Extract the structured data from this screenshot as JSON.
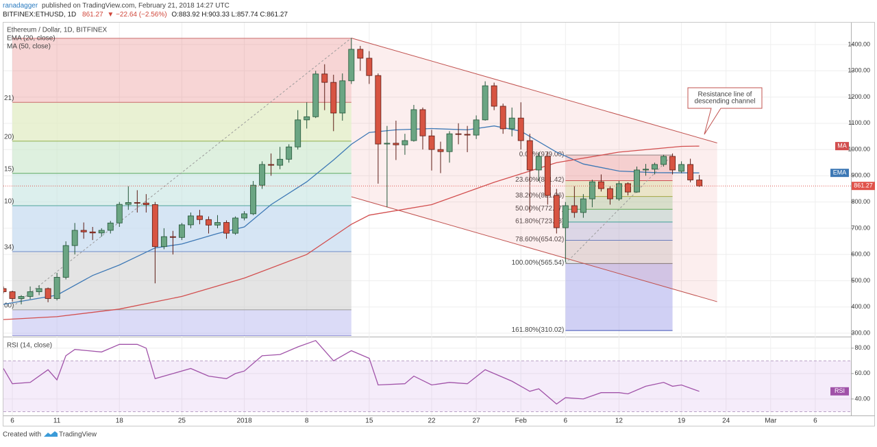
{
  "header": {
    "author": "ranadagger",
    "published": "published on TradingView.com, February 21, 2018 14:27 UTC",
    "symbol": "BITFINEX:ETHUSD, 1D",
    "last": "861.27",
    "change": "▼ −22.64 (−2.56%)",
    "ohlc": "O:883.92 H:903.33 L:857.74 C:861.27"
  },
  "footer": {
    "created": "Created with",
    "brand": "TradingView"
  },
  "chart_data": [
    {
      "type": "candlestick",
      "title": "Ethereum / Dollar, 1D, BITFINEX",
      "x": [
        "2017-12-05",
        "2017-12-06",
        "2017-12-07",
        "2017-12-08",
        "2017-12-09",
        "2017-12-10",
        "2017-12-11",
        "2017-12-12",
        "2017-12-13",
        "2017-12-14",
        "2017-12-15",
        "2017-12-16",
        "2017-12-17",
        "2017-12-18",
        "2017-12-19",
        "2017-12-20",
        "2017-12-21",
        "2017-12-22",
        "2017-12-23",
        "2017-12-24",
        "2017-12-25",
        "2017-12-26",
        "2017-12-27",
        "2017-12-28",
        "2017-12-29",
        "2017-12-30",
        "2017-12-31",
        "2018-01-01",
        "2018-01-02",
        "2018-01-03",
        "2018-01-04",
        "2018-01-05",
        "2018-01-06",
        "2018-01-07",
        "2018-01-08",
        "2018-01-09",
        "2018-01-10",
        "2018-01-11",
        "2018-01-12",
        "2018-01-13",
        "2018-01-14",
        "2018-01-15",
        "2018-01-16",
        "2018-01-17",
        "2018-01-18",
        "2018-01-19",
        "2018-01-20",
        "2018-01-21",
        "2018-01-22",
        "2018-01-23",
        "2018-01-24",
        "2018-01-25",
        "2018-01-26",
        "2018-01-27",
        "2018-01-28",
        "2018-01-29",
        "2018-01-30",
        "2018-01-31",
        "2018-02-01",
        "2018-02-02",
        "2018-02-03",
        "2018-02-04",
        "2018-02-05",
        "2018-02-06",
        "2018-02-07",
        "2018-02-08",
        "2018-02-09",
        "2018-02-10",
        "2018-02-11",
        "2018-02-12",
        "2018-02-13",
        "2018-02-14",
        "2018-02-15",
        "2018-02-16",
        "2018-02-17",
        "2018-02-18",
        "2018-02-19",
        "2018-02-20",
        "2018-02-21"
      ],
      "open": [
        470,
        458,
        432,
        440,
        458,
        470,
        432,
        513,
        634,
        692,
        686,
        682,
        692,
        720,
        791,
        798,
        796,
        790,
        630,
        668,
        665,
        713,
        747,
        733,
        712,
        722,
        681,
        739,
        755,
        864,
        943,
        940,
        963,
        1010,
        1113,
        1125,
        1288,
        1256,
        1139,
        1262,
        1382,
        1348,
        1282,
        1021,
        1024,
        1018,
        1034,
        1152,
        1052,
        1000,
        992,
        1060,
        1058,
        1055,
        1113,
        1243,
        1165,
        1079,
        1120,
        1034,
        922,
        974,
        825,
        702,
        786,
        760,
        812,
        877,
        851,
        812,
        870,
        838,
        922,
        925,
        943,
        974,
        917,
        943,
        883.92
      ],
      "high": [
        478,
        462,
        445,
        478,
        482,
        474,
        530,
        650,
        720,
        722,
        705,
        700,
        728,
        800,
        860,
        845,
        830,
        800,
        700,
        690,
        720,
        760,
        770,
        745,
        750,
        730,
        745,
        765,
        880,
        955,
        985,
        1010,
        1020,
        1150,
        1180,
        1300,
        1325,
        1285,
        1290,
        1425,
        1395,
        1375,
        1290,
        1090,
        1110,
        1060,
        1170,
        1160,
        1075,
        1030,
        1070,
        1100,
        1090,
        1130,
        1260,
        1255,
        1175,
        1160,
        1180,
        1060,
        990,
        990,
        850,
        800,
        860,
        830,
        885,
        905,
        860,
        880,
        875,
        935,
        945,
        950,
        980,
        985,
        955,
        965,
        903.33
      ],
      "low": [
        452,
        420,
        410,
        430,
        445,
        418,
        425,
        505,
        600,
        660,
        655,
        668,
        680,
        705,
        770,
        760,
        760,
        490,
        620,
        600,
        655,
        700,
        715,
        680,
        700,
        660,
        675,
        730,
        750,
        850,
        900,
        925,
        950,
        1000,
        1080,
        1120,
        1150,
        1070,
        1110,
        1250,
        1300,
        1250,
        870,
        780,
        960,
        980,
        1030,
        1000,
        920,
        910,
        950,
        1020,
        990,
        1040,
        1110,
        1150,
        1060,
        1050,
        1000,
        760,
        880,
        790,
        680,
        570,
        740,
        740,
        780,
        840,
        790,
        805,
        825,
        835,
        900,
        905,
        935,
        905,
        910,
        875,
        857.74
      ],
      "close": [
        458,
        432,
        440,
        458,
        470,
        432,
        513,
        634,
        692,
        686,
        682,
        692,
        720,
        791,
        798,
        796,
        790,
        630,
        668,
        665,
        713,
        747,
        733,
        712,
        722,
        681,
        739,
        755,
        864,
        943,
        940,
        963,
        1010,
        1113,
        1125,
        1288,
        1256,
        1139,
        1262,
        1382,
        1348,
        1282,
        1021,
        1024,
        1018,
        1034,
        1152,
        1052,
        1000,
        992,
        1060,
        1058,
        1055,
        1113,
        1243,
        1165,
        1079,
        1120,
        1034,
        922,
        974,
        825,
        702,
        786,
        760,
        812,
        877,
        851,
        812,
        870,
        838,
        922,
        925,
        943,
        974,
        922,
        943,
        884,
        861.27
      ],
      "up_color": "#6ba583",
      "down_color": "#d75442",
      "up_border": "#225437",
      "down_border": "#5b1a13",
      "xlim": [
        "2017-12-05",
        "2018-03-10"
      ],
      "xticks": [
        {
          "value": "2017-12-06",
          "label": "6"
        },
        {
          "value": "2017-12-11",
          "label": "11"
        },
        {
          "value": "2017-12-18",
          "label": "18"
        },
        {
          "value": "2017-12-25",
          "label": "25"
        },
        {
          "value": "2018-01-01",
          "label": "2018"
        },
        {
          "value": "2018-01-08",
          "label": "8"
        },
        {
          "value": "2018-01-15",
          "label": "15"
        },
        {
          "value": "2018-01-22",
          "label": "22"
        },
        {
          "value": "2018-01-27",
          "label": "27"
        },
        {
          "value": "2018-02-01",
          "label": "Feb"
        },
        {
          "value": "2018-02-06",
          "label": "6"
        },
        {
          "value": "2018-02-12",
          "label": "12"
        },
        {
          "value": "2018-02-19",
          "label": "19"
        },
        {
          "value": "2018-02-24",
          "label": "24"
        },
        {
          "value": "2018-03-01",
          "label": "Mar"
        },
        {
          "value": "2018-03-06",
          "label": "6"
        }
      ],
      "ylim": [
        289.5,
        1483.7
      ],
      "yticks": [
        {
          "value": 300,
          "label": "300.00"
        },
        {
          "value": 400,
          "label": "400.00"
        },
        {
          "value": 500,
          "label": "500.00"
        },
        {
          "value": 600,
          "label": "600.00"
        },
        {
          "value": 700,
          "label": "700.00"
        },
        {
          "value": 800,
          "label": "800.00"
        },
        {
          "value": 900,
          "label": "900.00"
        },
        {
          "value": 1000,
          "label": "1000.00"
        },
        {
          "value": 1100,
          "label": "1100.00"
        },
        {
          "value": 1200,
          "label": "1200.00"
        },
        {
          "value": 1300,
          "label": "1300.00"
        },
        {
          "value": 1400,
          "label": "1400.00"
        }
      ],
      "grid": true,
      "overlays": [
        {
          "name": "EMA (20, close)",
          "tag": "EMA",
          "color": "#3d78b5",
          "x": [
            "2017-12-05",
            "2017-12-11",
            "2017-12-15",
            "2017-12-18",
            "2017-12-22",
            "2017-12-25",
            "2017-12-29",
            "2018-01-01",
            "2018-01-04",
            "2018-01-08",
            "2018-01-11",
            "2018-01-13",
            "2018-01-15",
            "2018-01-18",
            "2018-01-22",
            "2018-01-26",
            "2018-01-29",
            "2018-02-01",
            "2018-02-05",
            "2018-02-08",
            "2018-02-12",
            "2018-02-16",
            "2018-02-21"
          ],
          "values": [
            410,
            445,
            520,
            560,
            625,
            640,
            680,
            705,
            790,
            877,
            960,
            1020,
            1065,
            1075,
            1080,
            1075,
            1090,
            1070,
            990,
            945,
            918,
            912,
            911
          ]
        },
        {
          "name": "MA (50, close)",
          "tag": "MA",
          "color": "#d24e4e",
          "x": [
            "2017-12-05",
            "2017-12-11",
            "2017-12-18",
            "2017-12-25",
            "2018-01-01",
            "2018-01-08",
            "2018-01-13",
            "2018-01-15",
            "2018-01-22",
            "2018-01-29",
            "2018-02-05",
            "2018-02-12",
            "2018-02-19",
            "2018-02-21"
          ],
          "values": [
            352,
            363,
            392,
            440,
            510,
            600,
            715,
            750,
            790,
            875,
            950,
            990,
            1012,
            1013
          ]
        }
      ],
      "last_price": {
        "value": 861.27,
        "label": "861.27",
        "color": "#e0524a"
      },
      "fib_left": {
        "x": [
          "2017-12-06",
          "2018-01-13"
        ],
        "levels": [
          {
            "value": 1424
          },
          {
            "value": 1180,
            "label": "21)"
          },
          {
            "value": 1032,
            "label": "20)"
          },
          {
            "value": 909,
            "label": "15)"
          },
          {
            "value": 786,
            "label": "10)"
          },
          {
            "value": 611,
            "label": "34)"
          },
          {
            "value": 389,
            "label": "00)"
          },
          {
            "value": 290
          }
        ],
        "line_colors": [
          "#c96b6b",
          "#c96b6b",
          "#8fae4a",
          "#5aa85e",
          "#4ea39a",
          "#6d8cc8",
          "#999999",
          "#7d7dc8"
        ],
        "zone_colors": [
          "rgba(229,115,115,0.30)",
          "rgba(226,236,196,0.75)",
          "rgba(200,230,201,0.60)",
          "rgba(197,229,225,0.60)",
          "rgba(200,220,240,0.75)",
          "rgba(205,205,205,0.55)",
          "rgba(190,190,240,0.55)"
        ]
      },
      "fib_right": {
        "x": [
          "2018-02-06",
          "2018-02-18"
        ],
        "levels": [
          {
            "value": 979.0,
            "label": "0.00%(979.00)"
          },
          {
            "value": 881.42,
            "label": "23.60%(881.42)"
          },
          {
            "value": 821.06,
            "label": "38.20%(821.06)"
          },
          {
            "value": 772.27,
            "label": "50.00%(772.27)"
          },
          {
            "value": 723.48,
            "label": "61.80%(723.48)"
          },
          {
            "value": 654.02,
            "label": "78.60%(654.02)"
          },
          {
            "value": 565.54,
            "label": "100.00%(565.54)"
          },
          {
            "value": 310.02,
            "label": "161.80%(310.02)"
          }
        ],
        "line_colors": [
          "#888888",
          "#c94a4a",
          "#9aae3e",
          "#4caf50",
          "#26a69a",
          "#5b7fc7",
          "#777777",
          "#3f51b5"
        ],
        "zone_colors": [
          "rgba(229,115,115,0.25)",
          "rgba(210,230,160,0.45)",
          "rgba(165,214,167,0.45)",
          "rgba(160,215,208,0.45)",
          "rgba(175,195,235,0.45)",
          "rgba(200,200,200,0.45)",
          "rgba(170,170,235,0.55)"
        ]
      },
      "channel": {
        "x": [
          "2018-01-13",
          "2018-02-23"
        ],
        "upper": [
          1425,
          1025
        ],
        "lower": [
          820,
          420
        ],
        "color": "#c0504d"
      },
      "guides": [
        {
          "x": [
            "2017-12-06",
            "2018-01-13"
          ],
          "y": [
            400,
            1425
          ]
        },
        {
          "x": [
            "2018-02-06",
            "2018-02-18"
          ],
          "y": [
            565.54,
            979
          ]
        }
      ],
      "annotation": [
        "Resistance line of",
        "descending channel"
      ]
    },
    {
      "type": "line",
      "title": "RSI (14, close)",
      "tag": "RSI",
      "color": "#a052a8",
      "x": [
        "2017-12-05",
        "2017-12-06",
        "2017-12-08",
        "2017-12-10",
        "2017-12-11",
        "2017-12-12",
        "2017-12-13",
        "2017-12-16",
        "2017-12-18",
        "2017-12-20",
        "2017-12-21",
        "2017-12-22",
        "2017-12-24",
        "2017-12-26",
        "2017-12-28",
        "2017-12-30",
        "2017-12-31",
        "2018-01-01",
        "2018-01-03",
        "2018-01-05",
        "2018-01-07",
        "2018-01-09",
        "2018-01-11",
        "2018-01-13",
        "2018-01-15",
        "2018-01-16",
        "2018-01-19",
        "2018-01-20",
        "2018-01-22",
        "2018-01-24",
        "2018-01-26",
        "2018-01-28",
        "2018-01-31",
        "2018-02-02",
        "2018-02-03",
        "2018-02-05",
        "2018-02-06",
        "2018-02-08",
        "2018-02-10",
        "2018-02-12",
        "2018-02-13",
        "2018-02-15",
        "2018-02-17",
        "2018-02-18",
        "2018-02-19",
        "2018-02-21"
      ],
      "values": [
        64,
        52,
        53,
        63,
        55,
        74,
        79,
        77,
        83,
        83,
        80,
        56,
        60,
        64,
        58,
        56,
        60,
        62,
        74,
        75,
        81,
        86,
        70,
        78,
        72,
        51,
        52,
        58,
        51,
        53,
        52,
        63,
        54,
        46,
        48,
        36,
        41,
        40,
        45,
        45,
        44,
        50,
        53,
        50,
        51,
        46
      ],
      "ylim": [
        27,
        88
      ],
      "yticks": [
        {
          "value": 40,
          "label": "40.00"
        },
        {
          "value": 60,
          "label": "60.00"
        },
        {
          "value": 80,
          "label": "80.00"
        }
      ],
      "band": [
        30,
        70
      ],
      "band_color": "rgba(200,150,230,0.18)"
    }
  ]
}
